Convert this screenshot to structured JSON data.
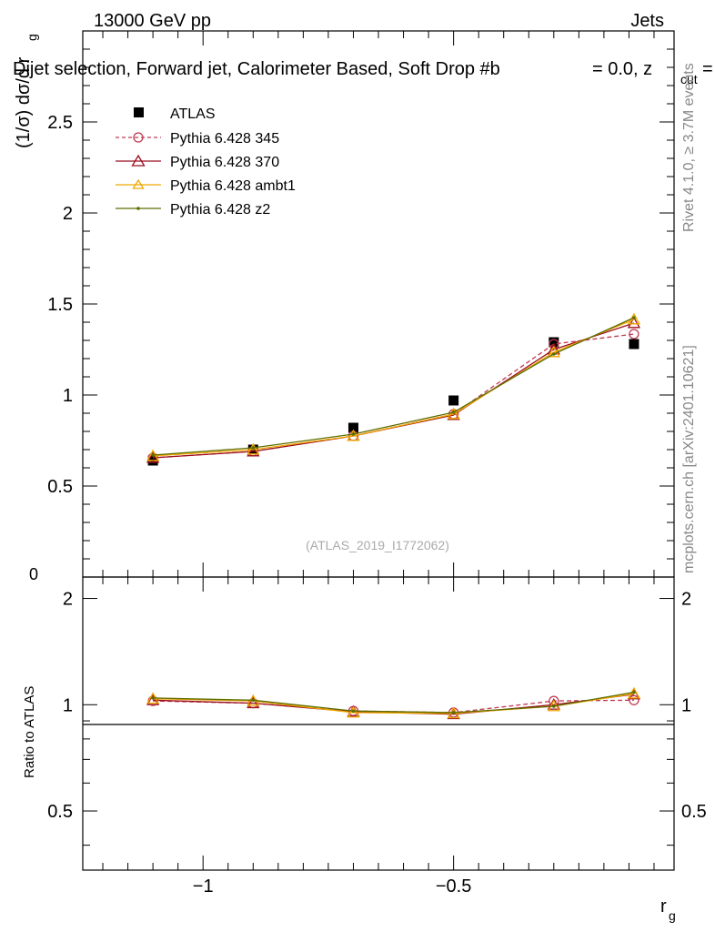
{
  "header": {
    "energy_label": "13000 GeV pp",
    "category_label": "Jets",
    "plot_title": "Dijet selection, Forward jet, Calorimeter Based, Soft Drop #b",
    "title_tail": "= 0.0, z",
    "title_tail_sub": "cut",
    "title_tail_end": "=",
    "rivet_label": "Rivet 4.1.0, ≥ 3.7M events",
    "mcplots_label": "mcplots.cern.ch [arXiv:2401.10621]",
    "watermark": "(ATLAS_2019_I1772062)"
  },
  "chart_data": [
    {
      "type": "line",
      "panel": "main",
      "ylabel": "(1/σ) dσ/d r",
      "ylabel_sub": "g",
      "ylim": [
        0,
        3
      ],
      "yticks": [
        0.5,
        1,
        1.5,
        2,
        2.5
      ],
      "ytick_labels": [
        "0.5",
        "1",
        "1.5",
        "2",
        "2.5"
      ],
      "ytick_zero_label": "0",
      "x": [
        -1.1,
        -0.9,
        -0.7,
        -0.5,
        -0.3,
        -0.14
      ],
      "series": [
        {
          "name": "ATLAS",
          "values": [
            0.64,
            0.7,
            0.82,
            0.97,
            1.29,
            1.28
          ],
          "color": "#000000",
          "marker": "square",
          "dash": "none"
        },
        {
          "name": "Pythia 6.428 345",
          "values": [
            0.655,
            0.69,
            0.775,
            0.895,
            1.28,
            1.335
          ],
          "color": "#c0394f",
          "marker": "circle",
          "dash": "dashed"
        },
        {
          "name": "Pythia 6.428 370",
          "values": [
            0.655,
            0.69,
            0.775,
            0.89,
            1.25,
            1.395
          ],
          "color": "#9b0d1e",
          "marker": "triangle",
          "dash": "solid"
        },
        {
          "name": "Pythia 6.428 ambt1",
          "values": [
            0.665,
            0.7,
            0.775,
            0.895,
            1.235,
            1.415
          ],
          "color": "#f0a800",
          "marker": "triangle",
          "dash": "solid"
        },
        {
          "name": "Pythia 6.428 z2",
          "values": [
            0.67,
            0.71,
            0.785,
            0.905,
            1.225,
            1.425
          ],
          "color": "#5e6d00",
          "marker": "dot",
          "dash": "solid"
        }
      ]
    },
    {
      "type": "line",
      "panel": "ratio",
      "ylabel": "Ratio to ATLAS",
      "xlabel": "r",
      "xlabel_sub": "g",
      "xlim": [
        -1.24,
        -0.06
      ],
      "ylim": [
        0.34,
        2.3
      ],
      "xticks": [
        -1,
        -0.5
      ],
      "xtick_labels": [
        "−1",
        "−0.5"
      ],
      "yticks": [
        0.5,
        1,
        2
      ],
      "ytick_labels": [
        "0.5",
        "1",
        "2"
      ],
      "x": [
        -1.1,
        -0.9,
        -0.7,
        -0.5,
        -0.3,
        -0.14
      ],
      "series": [
        {
          "name": "Pythia 6.428 345",
          "values": [
            1.025,
            1.01,
            0.96,
            0.95,
            1.025,
            1.03
          ],
          "color": "#c0394f",
          "marker": "circle",
          "dash": "dashed"
        },
        {
          "name": "Pythia 6.428 370",
          "values": [
            1.03,
            1.01,
            0.955,
            0.94,
            1.0,
            1.07
          ],
          "color": "#9b0d1e",
          "marker": "triangle",
          "dash": "solid"
        },
        {
          "name": "Pythia 6.428 ambt1",
          "values": [
            1.04,
            1.025,
            0.95,
            0.945,
            0.99,
            1.075
          ],
          "color": "#f0a800",
          "marker": "triangle",
          "dash": "solid"
        },
        {
          "name": "Pythia 6.428 z2",
          "values": [
            1.045,
            1.03,
            0.96,
            0.95,
            0.99,
            1.085
          ],
          "color": "#5e6d00",
          "marker": "dot",
          "dash": "solid"
        }
      ]
    }
  ]
}
